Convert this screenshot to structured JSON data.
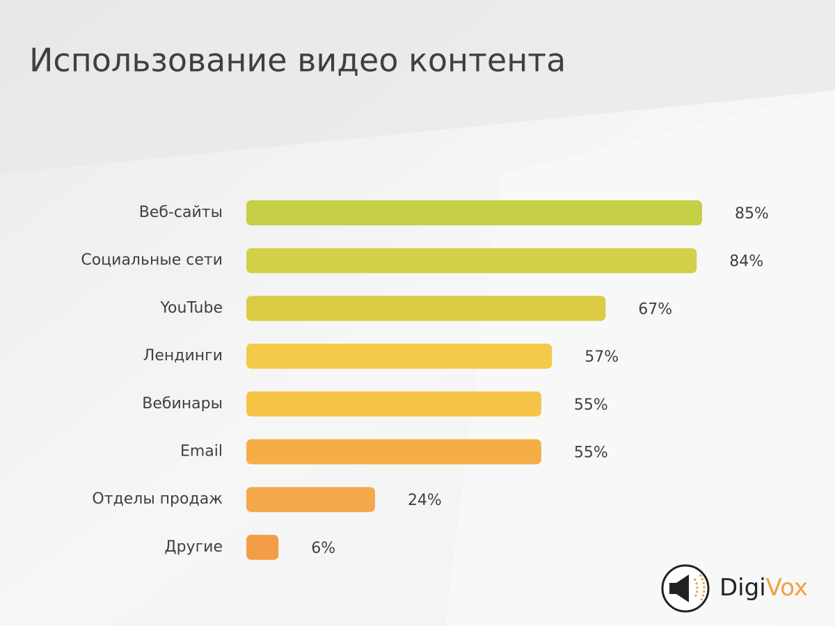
{
  "chart_data": {
    "type": "barh",
    "title": "Использование видео контента",
    "categories": [
      "Веб-сайты",
      "Социальные сети",
      "YouTube",
      "Лендинги",
      "Вебинары",
      "Email",
      "Отделы продаж",
      "Другие"
    ],
    "values": [
      85,
      84,
      67,
      57,
      55,
      55,
      24,
      6
    ],
    "value_labels": [
      "85%",
      "84%",
      "67%",
      "57%",
      "55%",
      "55%",
      "24%",
      "6%"
    ],
    "colors": [
      "#c5d046",
      "#d3d04a",
      "#dccb45",
      "#f3c94a",
      "#f6c346",
      "#f5ad47",
      "#f5a84b",
      "#f39e47"
    ]
  },
  "logo": [
    "Digi",
    "Vox"
  ]
}
